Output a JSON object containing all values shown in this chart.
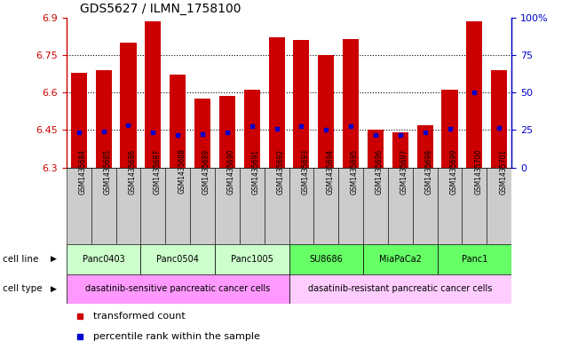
{
  "title": "GDS5627 / ILMN_1758100",
  "samples": [
    "GSM1435684",
    "GSM1435685",
    "GSM1435686",
    "GSM1435687",
    "GSM1435688",
    "GSM1435689",
    "GSM1435690",
    "GSM1435691",
    "GSM1435692",
    "GSM1435693",
    "GSM1435694",
    "GSM1435695",
    "GSM1435696",
    "GSM1435697",
    "GSM1435698",
    "GSM1435699",
    "GSM1435700",
    "GSM1435701"
  ],
  "bar_values": [
    6.68,
    6.69,
    6.8,
    6.885,
    6.67,
    6.575,
    6.585,
    6.61,
    6.82,
    6.81,
    6.75,
    6.815,
    6.45,
    6.44,
    6.47,
    6.61,
    6.885,
    6.69
  ],
  "blue_marker_y": [
    6.44,
    6.445,
    6.47,
    6.44,
    6.43,
    6.435,
    6.44,
    6.465,
    6.455,
    6.465,
    6.45,
    6.465,
    6.43,
    6.43,
    6.44,
    6.455,
    6.6,
    6.46
  ],
  "ylim": [
    6.3,
    6.9
  ],
  "yticks": [
    6.3,
    6.45,
    6.6,
    6.75,
    6.9
  ],
  "right_yticks": [
    0,
    25,
    50,
    75,
    100
  ],
  "right_yticklabels": [
    "0",
    "25",
    "50",
    "75",
    "100%"
  ],
  "bar_color": "#cc0000",
  "blue_color": "#0000cc",
  "bar_width": 0.65,
  "cell_lines": [
    {
      "label": "Panc0403",
      "start": 0,
      "end": 2,
      "color": "#ccffcc"
    },
    {
      "label": "Panc0504",
      "start": 3,
      "end": 5,
      "color": "#ccffcc"
    },
    {
      "label": "Panc1005",
      "start": 6,
      "end": 8,
      "color": "#ccffcc"
    },
    {
      "label": "SU8686",
      "start": 9,
      "end": 11,
      "color": "#66ff66"
    },
    {
      "label": "MiaPaCa2",
      "start": 12,
      "end": 14,
      "color": "#66ff66"
    },
    {
      "label": "Panc1",
      "start": 15,
      "end": 17,
      "color": "#66ff66"
    }
  ],
  "cell_types": [
    {
      "label": "dasatinib-sensitive pancreatic cancer cells",
      "start": 0,
      "end": 8,
      "color": "#ff99ff"
    },
    {
      "label": "dasatinib-resistant pancreatic cancer cells",
      "start": 9,
      "end": 17,
      "color": "#ffccff"
    }
  ],
  "legend_items": [
    {
      "label": "transformed count",
      "color": "#cc0000"
    },
    {
      "label": "percentile rank within the sample",
      "color": "#0000cc"
    }
  ],
  "left_axis_color": "#cc0000",
  "right_axis_color": "#0000cc",
  "grid_color": "#000000",
  "sample_box_color": "#cccccc",
  "fig_width": 6.51,
  "fig_height": 3.93,
  "dpi": 100
}
